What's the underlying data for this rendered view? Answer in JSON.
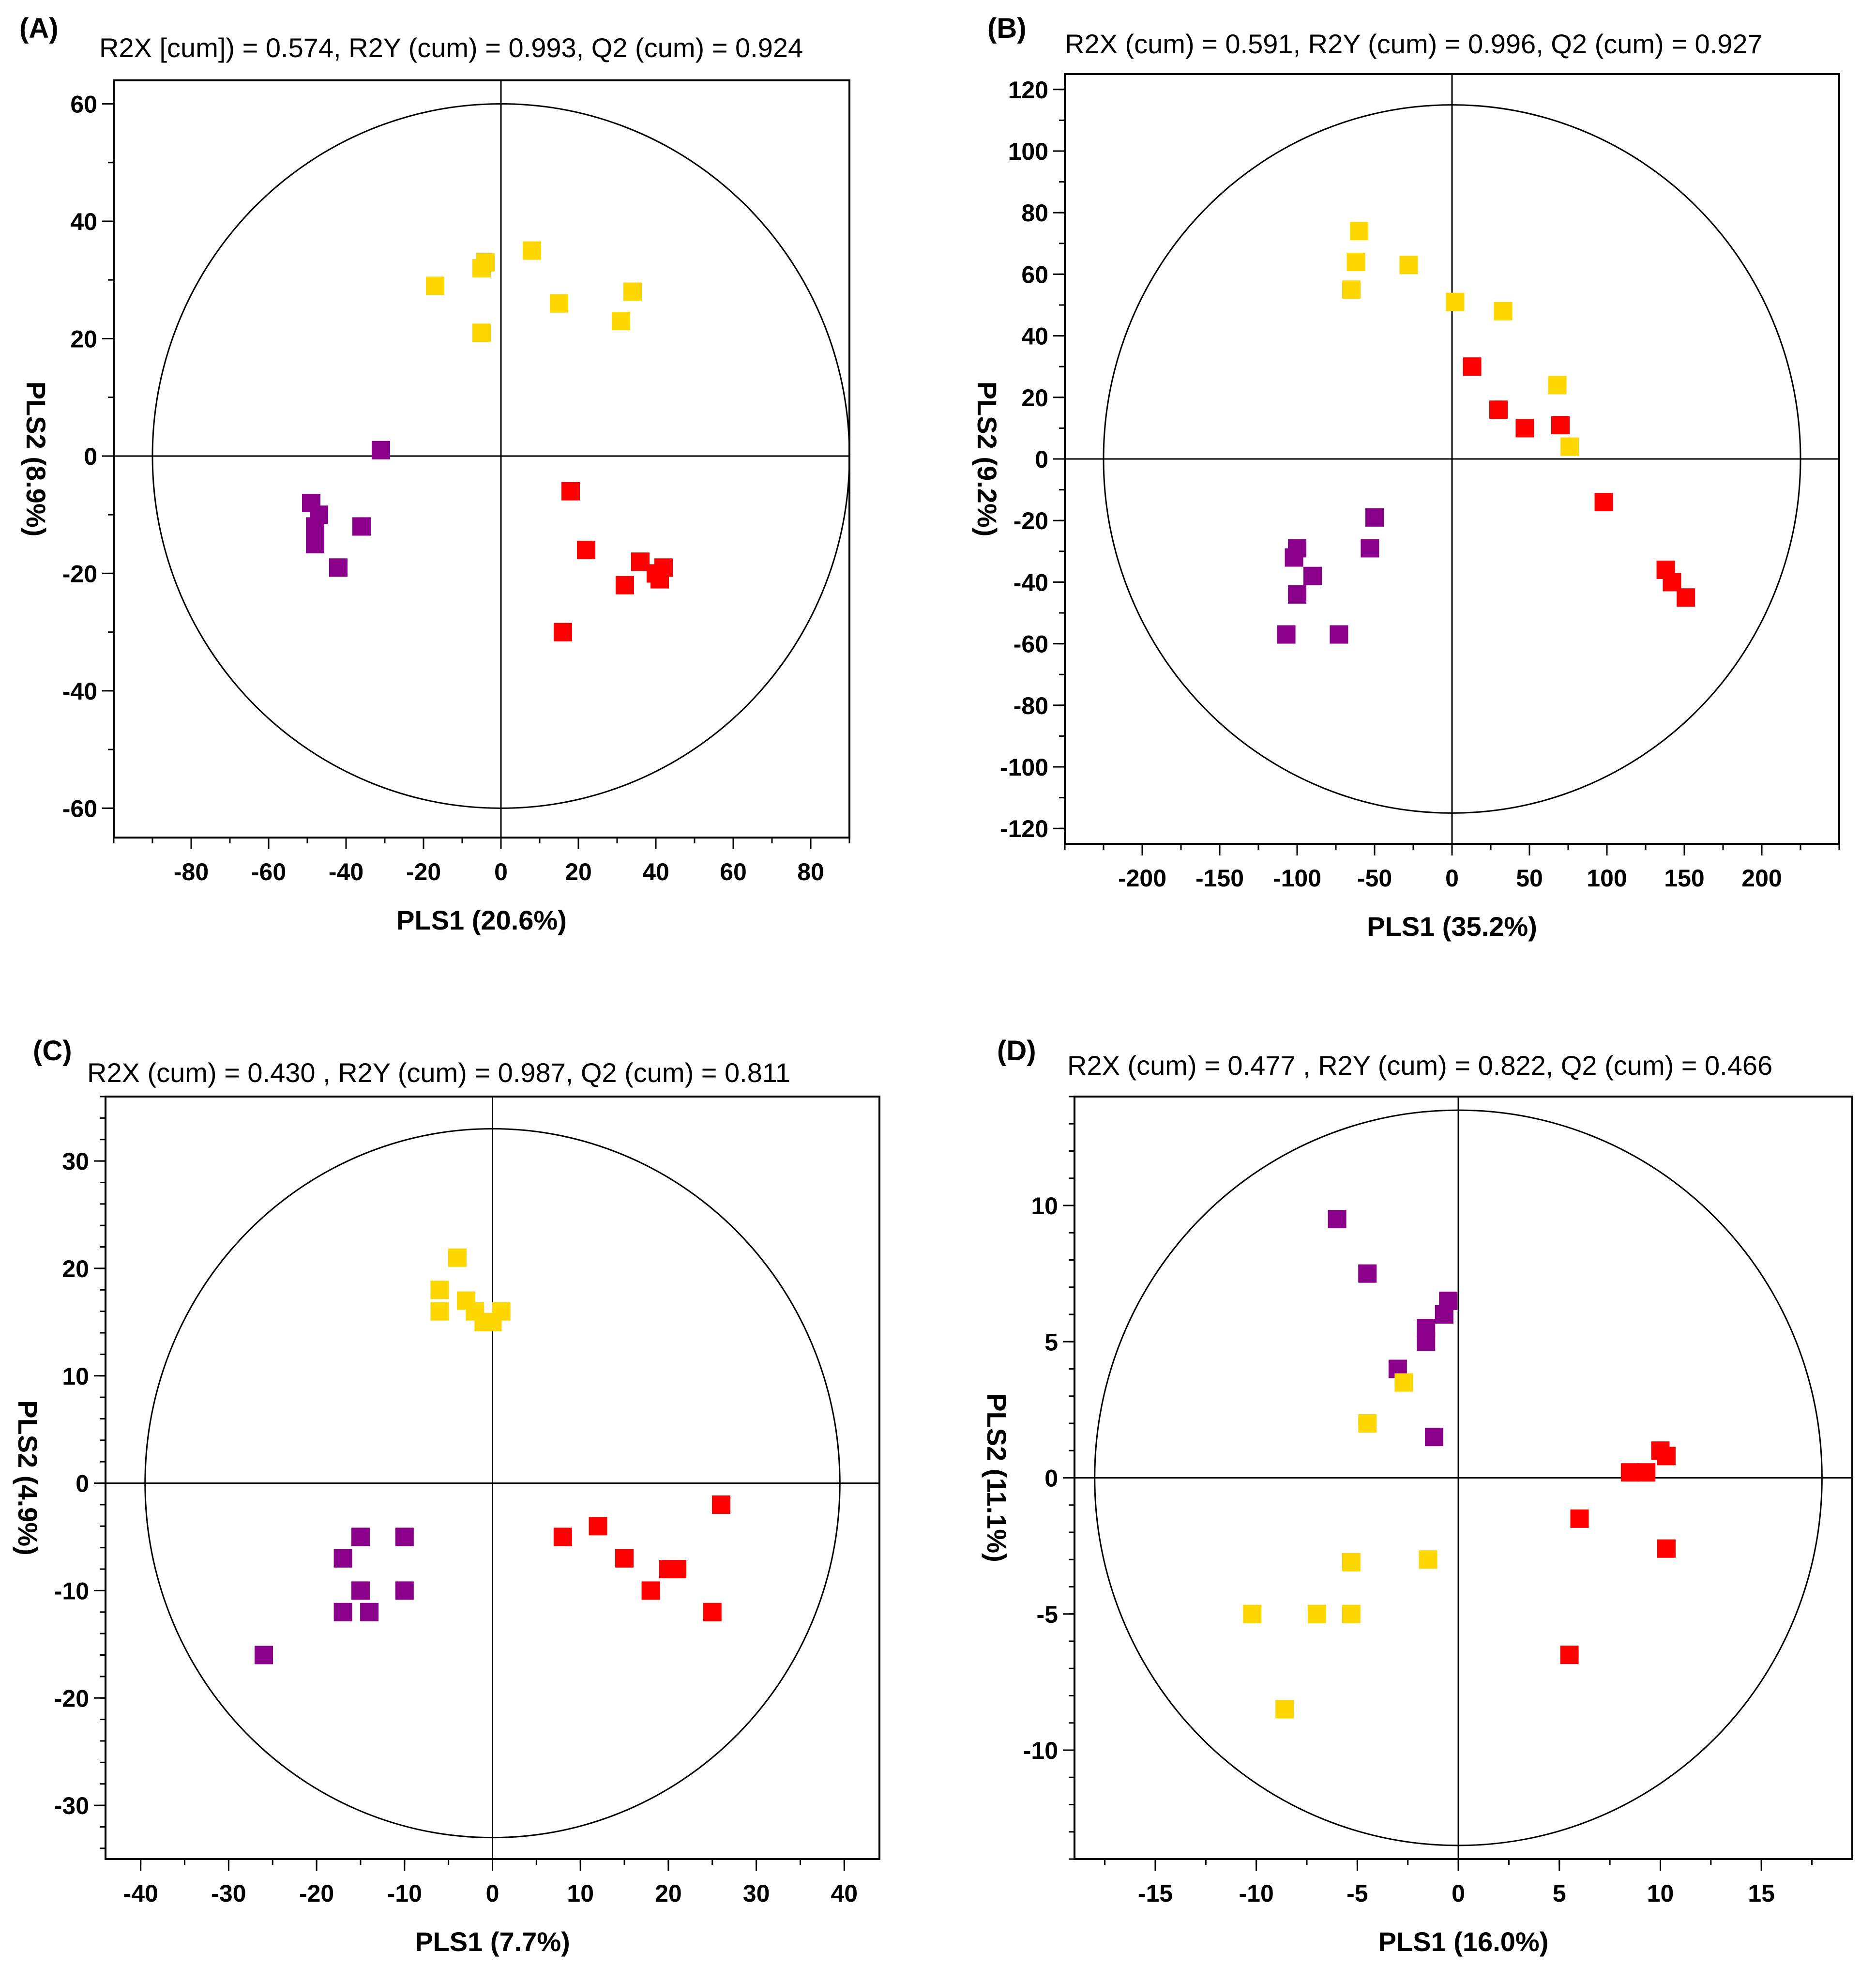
{
  "figure": {
    "colors": {
      "purple": "#8B008B",
      "yellow": "#FFD700",
      "red": "#FF0000",
      "axis": "#000000",
      "background": "#FFFFFF"
    }
  },
  "chart_data": [
    {
      "type": "scatter",
      "panel_label": "(A)",
      "stats": "R2X [cum]) = 0.574, R2Y (cum) = 0.993, Q2 (cum) = 0.924",
      "xlabel": "PLS1 (20.6%)",
      "ylabel": "PLS2 (8.9%)",
      "xlim": [
        -100,
        90
      ],
      "ylim": [
        -65,
        64
      ],
      "xticks": [
        -80,
        -60,
        -40,
        -20,
        0,
        20,
        40,
        60,
        80
      ],
      "yticks": [
        -60,
        -40,
        -20,
        0,
        20,
        40,
        60
      ],
      "xtick_labels": [
        "-80",
        "-60",
        "-40",
        "-20",
        "0",
        "20",
        "40",
        "60",
        "80"
      ],
      "ytick_labels": [
        "-60",
        "-40",
        "-20",
        "0",
        "20",
        "40",
        "60"
      ],
      "minor_x": 10,
      "minor_y": 10,
      "ellipse": {
        "rx": 90,
        "ry": 60
      },
      "series": [
        {
          "name": "group-purple",
          "color": "purple",
          "points": [
            [
              -31,
              1
            ],
            [
              -49,
              -8
            ],
            [
              -48,
              -12
            ],
            [
              -47,
              -10
            ],
            [
              -48,
              -15
            ],
            [
              -36,
              -12
            ],
            [
              -42,
              -19
            ]
          ]
        },
        {
          "name": "group-yellow",
          "color": "yellow",
          "points": [
            [
              -17,
              29
            ],
            [
              -5,
              32
            ],
            [
              -4,
              33
            ],
            [
              -5,
              21
            ],
            [
              8,
              35
            ],
            [
              15,
              26
            ],
            [
              31,
              23
            ],
            [
              34,
              28
            ]
          ]
        },
        {
          "name": "group-red",
          "color": "red",
          "points": [
            [
              18,
              -6
            ],
            [
              22,
              -16
            ],
            [
              16,
              -30
            ],
            [
              36,
              -18
            ],
            [
              32,
              -22
            ],
            [
              40,
              -20
            ],
            [
              42,
              -19
            ],
            [
              41,
              -21
            ]
          ]
        }
      ]
    },
    {
      "type": "scatter",
      "panel_label": "(B)",
      "stats": "R2X (cum) = 0.591, R2Y (cum) = 0.996, Q2 (cum) = 0.927",
      "xlabel": "PLS1 (35.2%)",
      "ylabel": "PLS2 (9.2%)",
      "xlim": [
        -250,
        250
      ],
      "ylim": [
        -125,
        125
      ],
      "xticks": [
        -200,
        -150,
        -100,
        -50,
        0,
        50,
        100,
        150,
        200
      ],
      "yticks": [
        -120,
        -100,
        -80,
        -60,
        -40,
        -20,
        0,
        20,
        40,
        60,
        80,
        100,
        120
      ],
      "xtick_labels": [
        "-200",
        "-150",
        "-100",
        "-50",
        "0",
        "50",
        "100",
        "150",
        "200"
      ],
      "ytick_labels": [
        "-120",
        "-100",
        "-80",
        "-60",
        "-40",
        "-20",
        "0",
        "20",
        "40",
        "60",
        "80",
        "100",
        "120"
      ],
      "minor_x": 25,
      "minor_y": 10,
      "ellipse": {
        "rx": 225,
        "ry": 115
      },
      "series": [
        {
          "name": "group-purple",
          "color": "purple",
          "points": [
            [
              -50,
              -19
            ],
            [
              -53,
              -29
            ],
            [
              -100,
              -29
            ],
            [
              -102,
              -32
            ],
            [
              -90,
              -38
            ],
            [
              -100,
              -44
            ],
            [
              -107,
              -57
            ],
            [
              -73,
              -57
            ]
          ]
        },
        {
          "name": "group-yellow",
          "color": "yellow",
          "points": [
            [
              -60,
              74
            ],
            [
              -62,
              64
            ],
            [
              -65,
              55
            ],
            [
              -28,
              63
            ],
            [
              2,
              51
            ],
            [
              33,
              48
            ],
            [
              68,
              24
            ],
            [
              76,
              4
            ]
          ]
        },
        {
          "name": "group-red",
          "color": "red",
          "points": [
            [
              13,
              30
            ],
            [
              30,
              16
            ],
            [
              47,
              10
            ],
            [
              70,
              11
            ],
            [
              98,
              -14
            ],
            [
              138,
              -36
            ],
            [
              142,
              -40
            ],
            [
              151,
              -45
            ]
          ]
        }
      ]
    },
    {
      "type": "scatter",
      "panel_label": "(C)",
      "stats": "R2X (cum) = 0.430 , R2Y (cum) = 0.987, Q2 (cum) = 0.811",
      "xlabel": "PLS1 (7.7%)",
      "ylabel": "PLS2 (4.9%)",
      "xlim": [
        -44,
        44
      ],
      "ylim": [
        -35,
        36
      ],
      "xticks": [
        -40,
        -30,
        -20,
        -10,
        0,
        10,
        20,
        30,
        40
      ],
      "yticks": [
        -30,
        -20,
        -10,
        0,
        10,
        20,
        30
      ],
      "xtick_labels": [
        "-40",
        "-30",
        "-20",
        "-10",
        "0",
        "10",
        "20",
        "30",
        "40"
      ],
      "ytick_labels": [
        "-30",
        "-20",
        "-10",
        "0",
        "10",
        "20",
        "30"
      ],
      "minor_x": 5,
      "minor_y": 2,
      "ellipse": {
        "rx": 39.5,
        "ry": 33
      },
      "series": [
        {
          "name": "group-purple",
          "color": "purple",
          "points": [
            [
              -15,
              -5
            ],
            [
              -17,
              -7
            ],
            [
              -10,
              -5
            ],
            [
              -15,
              -10
            ],
            [
              -10,
              -10
            ],
            [
              -17,
              -12
            ],
            [
              -14,
              -12
            ],
            [
              -26,
              -16
            ]
          ]
        },
        {
          "name": "group-yellow",
          "color": "yellow",
          "points": [
            [
              -4,
              21
            ],
            [
              -6,
              18
            ],
            [
              -3,
              17
            ],
            [
              -6,
              16
            ],
            [
              -2,
              16
            ],
            [
              0,
              15
            ],
            [
              1,
              16
            ],
            [
              -1,
              15
            ]
          ]
        },
        {
          "name": "group-red",
          "color": "red",
          "points": [
            [
              8,
              -5
            ],
            [
              12,
              -4
            ],
            [
              15,
              -7
            ],
            [
              20,
              -8
            ],
            [
              21,
              -8
            ],
            [
              18,
              -10
            ],
            [
              26,
              -2
            ],
            [
              25,
              -12
            ]
          ]
        }
      ]
    },
    {
      "type": "scatter",
      "panel_label": "(D)",
      "stats": "R2X (cum) = 0.477 , R2Y (cum) = 0.822, Q2 (cum) = 0.466",
      "xlabel": "PLS1 (16.0%)",
      "ylabel": "PLS2 (11.1%)",
      "xlim": [
        -19,
        19.5
      ],
      "ylim": [
        -14,
        14
      ],
      "xticks": [
        -15,
        -10,
        -5,
        0,
        5,
        10,
        15
      ],
      "yticks": [
        -10,
        -5,
        0,
        5,
        10
      ],
      "xtick_labels": [
        "-15",
        "-10",
        "-5",
        "0",
        "5",
        "10",
        "15"
      ],
      "ytick_labels": [
        "-10",
        "-5",
        "0",
        "5",
        "10"
      ],
      "minor_x": 2.5,
      "minor_y": 1,
      "ellipse": {
        "rx": 18,
        "ry": 13.5
      },
      "series": [
        {
          "name": "group-purple",
          "color": "purple",
          "points": [
            [
              -6,
              9.5
            ],
            [
              -4.5,
              7.5
            ],
            [
              -0.5,
              6.5
            ],
            [
              -0.7,
              6
            ],
            [
              -1.6,
              5.5
            ],
            [
              -1.6,
              5
            ],
            [
              -3,
              4
            ],
            [
              -1.2,
              1.5
            ]
          ]
        },
        {
          "name": "group-yellow",
          "color": "yellow",
          "points": [
            [
              -2.7,
              3.5
            ],
            [
              -4.5,
              2
            ],
            [
              -5.3,
              -3.1
            ],
            [
              -1.5,
              -3
            ],
            [
              -10.2,
              -5
            ],
            [
              -7,
              -5
            ],
            [
              -5.3,
              -5
            ],
            [
              -8.6,
              -8.5
            ]
          ]
        },
        {
          "name": "group-red",
          "color": "red",
          "points": [
            [
              10,
              1
            ],
            [
              10.3,
              0.8
            ],
            [
              8.5,
              0.2
            ],
            [
              9.3,
              0.2
            ],
            [
              6,
              -1.5
            ],
            [
              10.3,
              -2.6
            ],
            [
              5.5,
              -6.5
            ]
          ]
        }
      ]
    }
  ]
}
